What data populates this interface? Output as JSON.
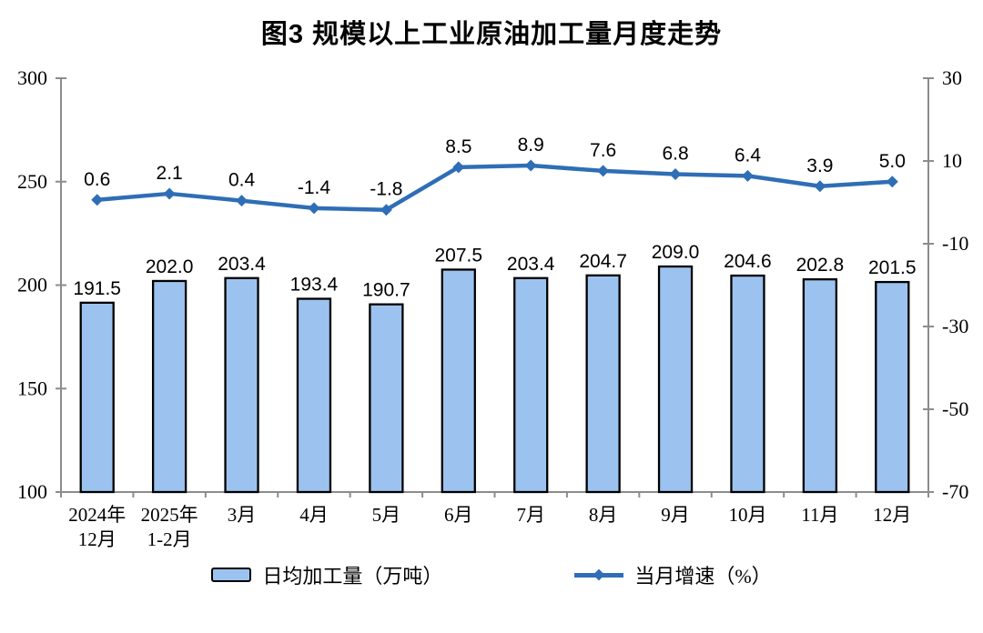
{
  "chart_data": {
    "type": "bar+line",
    "title": "图3 规模以上工业原油加工量月度走势",
    "categories": [
      [
        "2024年",
        "12月"
      ],
      [
        "2025年",
        "1-2月"
      ],
      [
        "3月"
      ],
      [
        "4月"
      ],
      [
        "5月"
      ],
      [
        "6月"
      ],
      [
        "7月"
      ],
      [
        "8月"
      ],
      [
        "9月"
      ],
      [
        "10月"
      ],
      [
        "11月"
      ],
      [
        "12月"
      ]
    ],
    "series": [
      {
        "name": "日均加工量（万吨）",
        "type": "bar",
        "axis": "left",
        "values": [
          191.5,
          202.0,
          203.4,
          193.4,
          190.7,
          207.5,
          203.4,
          204.7,
          209.0,
          204.6,
          202.8,
          201.5
        ],
        "labels": [
          "191.5",
          "202.0",
          "203.4",
          "193.4",
          "190.7",
          "207.5",
          "203.4",
          "204.7",
          "209.0",
          "204.6",
          "202.8",
          "201.5"
        ]
      },
      {
        "name": "当月增速（%）",
        "type": "line",
        "axis": "right",
        "values": [
          0.6,
          2.1,
          0.4,
          -1.4,
          -1.8,
          8.5,
          8.9,
          7.6,
          6.8,
          6.4,
          3.9,
          5.0
        ],
        "labels": [
          "0.6",
          "2.1",
          "0.4",
          "-1.4",
          "-1.8",
          "8.5",
          "8.9",
          "7.6",
          "6.8",
          "6.4",
          "3.9",
          "5.0"
        ]
      }
    ],
    "left_axis": {
      "min": 100,
      "max": 300,
      "ticks": [
        300,
        250,
        200,
        150,
        100
      ]
    },
    "right_axis": {
      "min": -70,
      "max": 30,
      "ticks": [
        30,
        10,
        -10,
        -30,
        -50,
        -70
      ]
    },
    "grid": false,
    "legend_position": "bottom",
    "legend": [
      {
        "label": "日均加工量（万吨）",
        "swatch": "bar"
      },
      {
        "label": "当月增速（%）",
        "swatch": "line"
      }
    ],
    "colors": {
      "bar_fill": "#9CC3EF",
      "bar_border": "#000000",
      "line": "#2F6EB6",
      "axis": "#8C8C8C",
      "text": "#000000"
    }
  }
}
